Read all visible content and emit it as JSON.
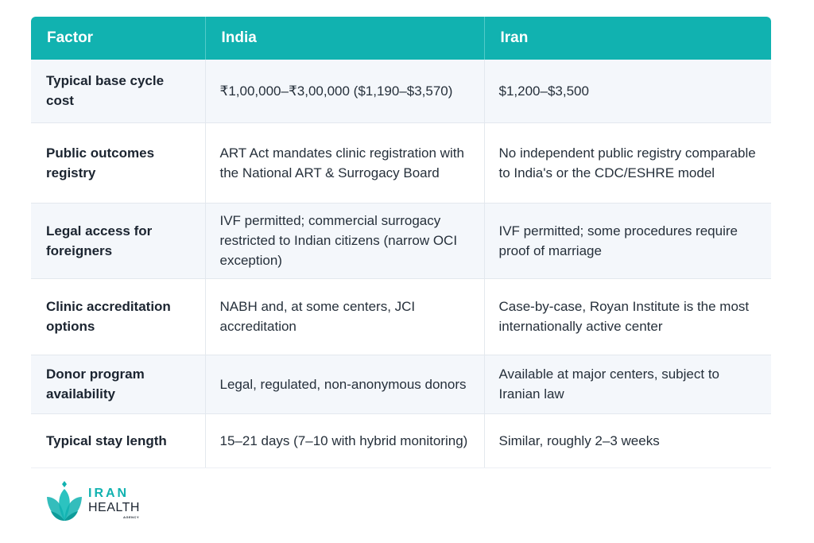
{
  "table": {
    "headers": [
      "Factor",
      "India",
      "Iran"
    ],
    "rows": [
      {
        "factor": "Typical base cycle cost",
        "india": "₹1,00,000–₹3,00,000 ($1,190–$3,570)",
        "iran": "$1,200–$3,500"
      },
      {
        "factor": "Public outcomes registry",
        "india": "ART Act mandates clinic registration with the National ART & Surrogacy Board",
        "iran": "No independent public registry comparable to India's or the CDC/ESHRE model"
      },
      {
        "factor": "Legal access for foreigners",
        "india": "IVF permitted; commercial surrogacy restricted to Indian citizens (narrow OCI exception)",
        "iran": "IVF permitted; some procedures require proof of marriage"
      },
      {
        "factor": "Clinic accreditation options",
        "india": "NABH and, at some centers, JCI accreditation",
        "iran": "Case-by-case, Royan Institute is the most internationally active center"
      },
      {
        "factor": "Donor program availability",
        "india": "Legal, regulated, non-anonymous donors",
        "iran": "Available at major centers, subject to Iranian law"
      },
      {
        "factor": "Typical stay length",
        "india": "15–21 days (7–10 with hybrid monitoring)",
        "iran": "Similar, roughly 2–3 weeks"
      }
    ]
  },
  "logo": {
    "word1": "IRAN",
    "word2": "HEALTH",
    "word3": "AGENCY",
    "icon": "lotus-icon",
    "color": "#11b2b0"
  },
  "colors": {
    "header_bg": "#11b2b0",
    "row_alt_bg": "#f4f7fb"
  }
}
